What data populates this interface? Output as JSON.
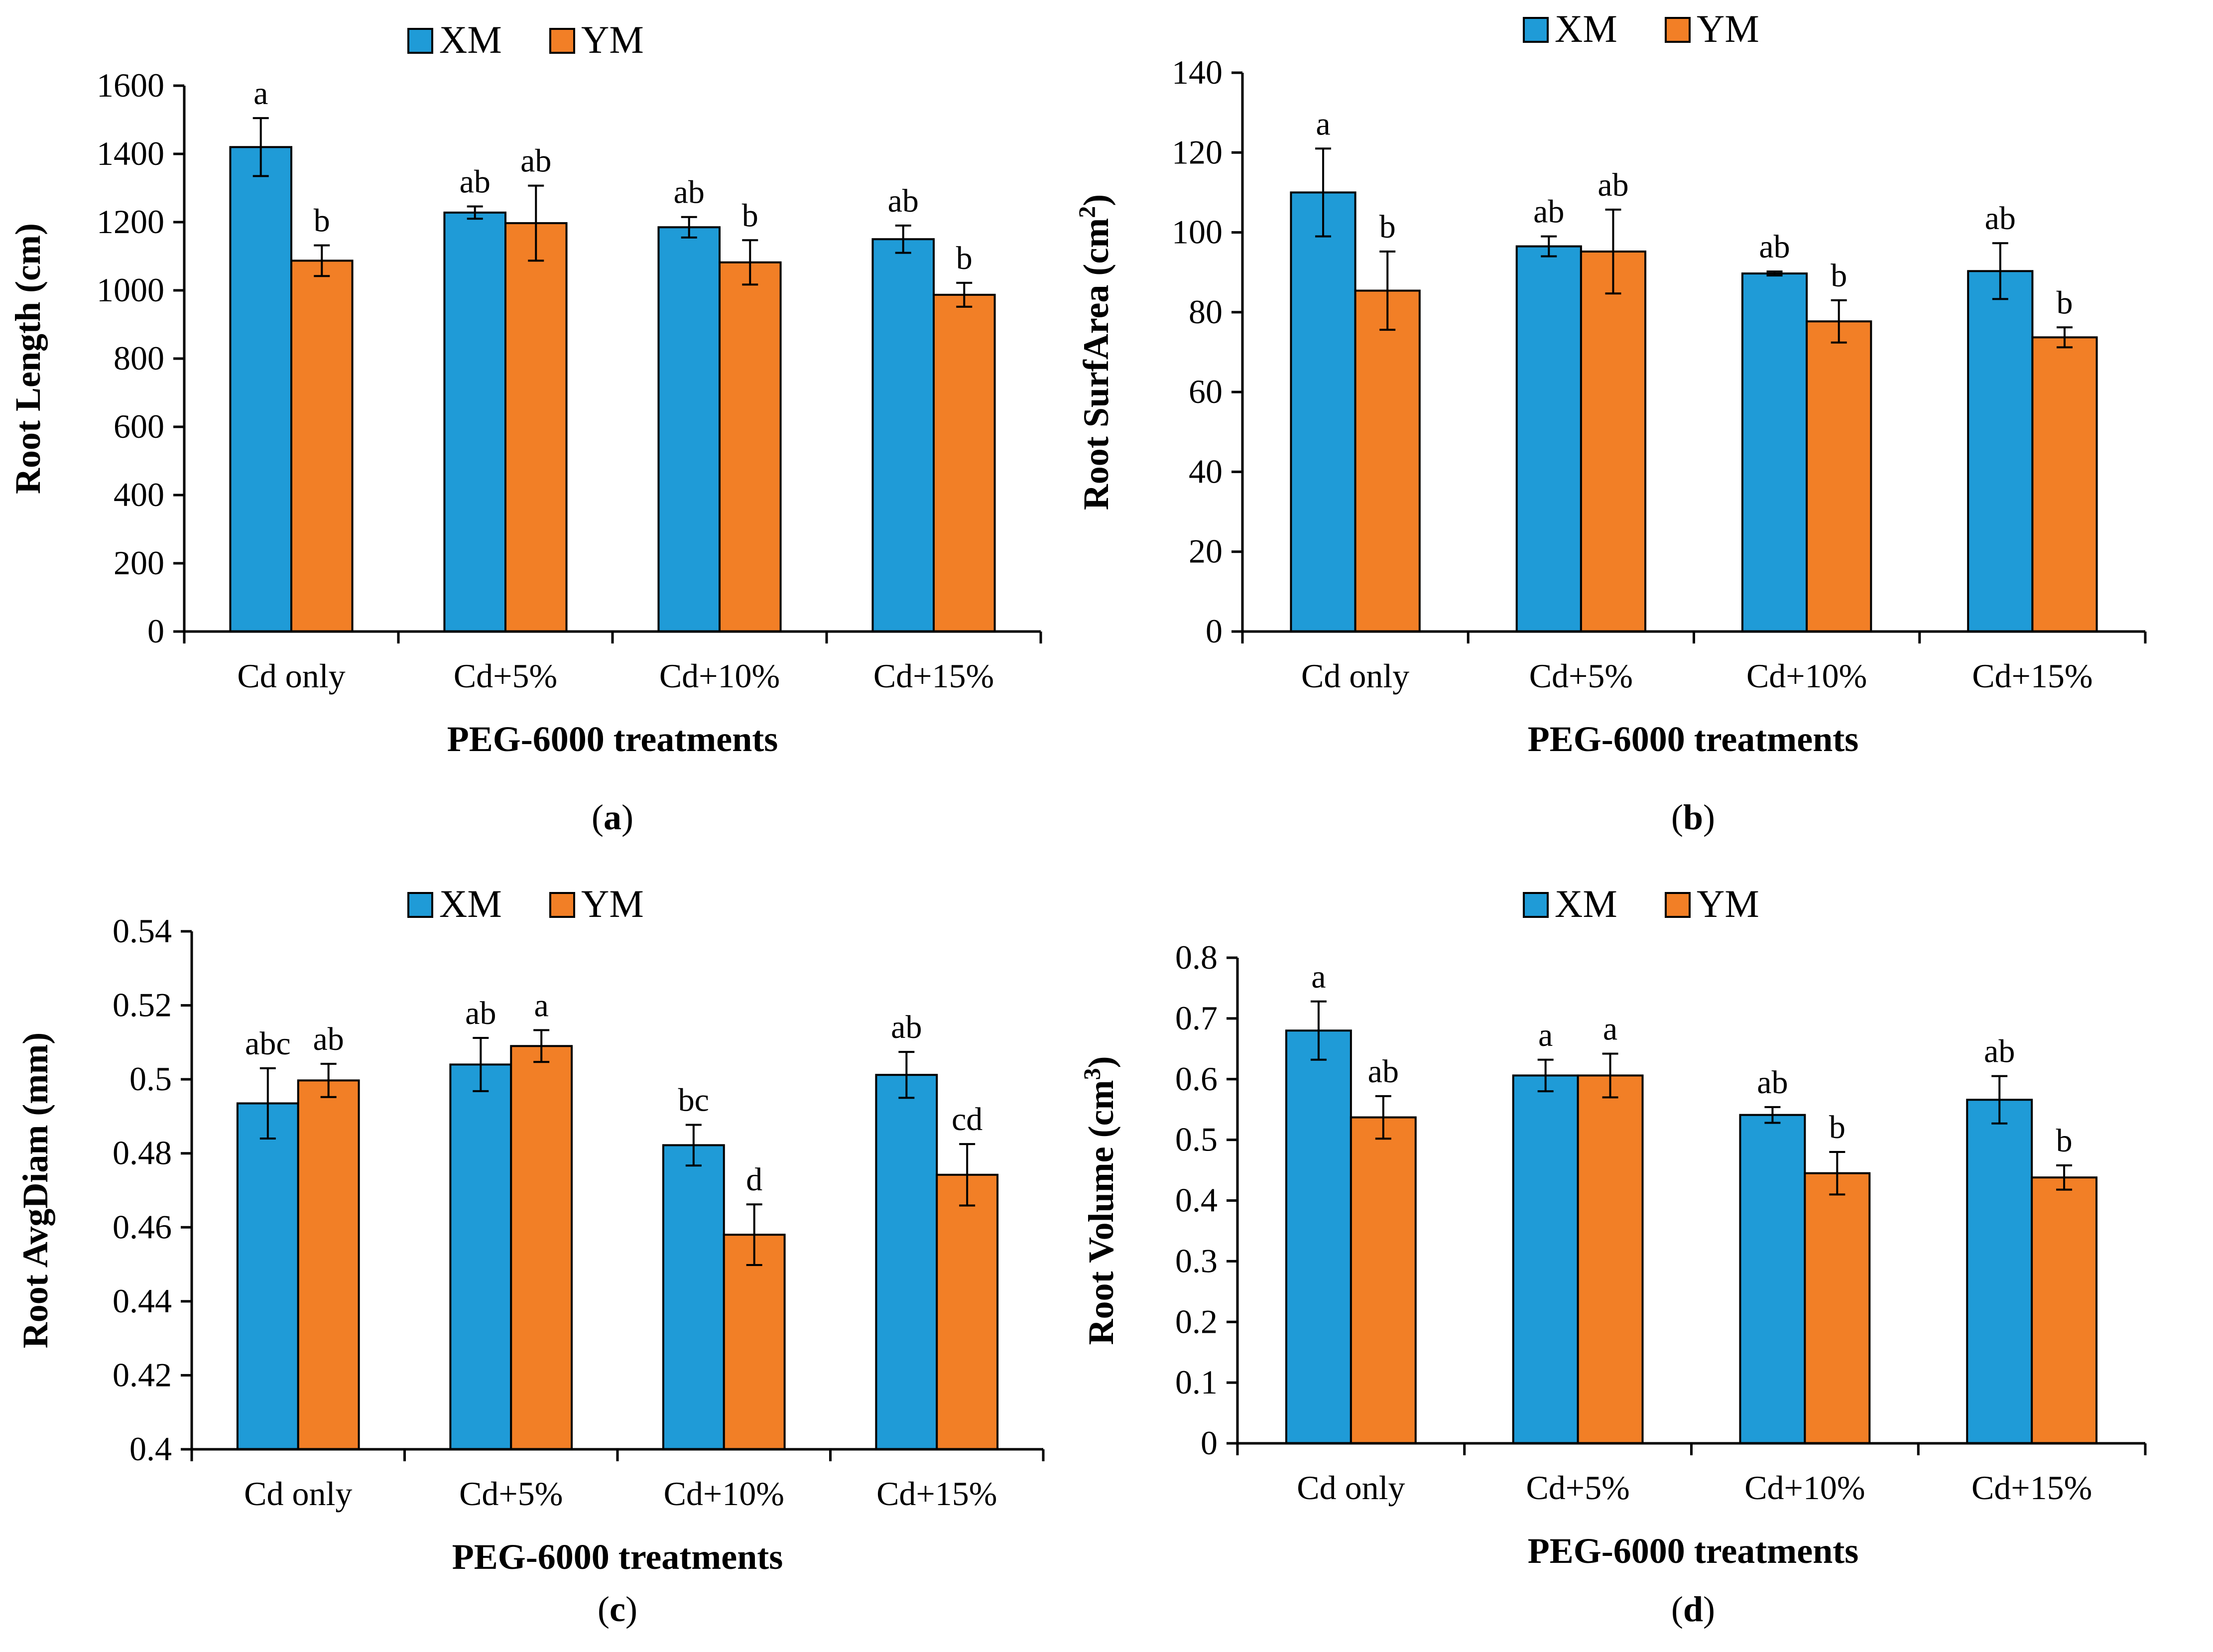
{
  "colors": {
    "XM": "#1f9bd7",
    "YM": "#f27f26",
    "axis": "#000000"
  },
  "legend": [
    "XM",
    "YM"
  ],
  "chart_data": [
    {
      "type": "bar",
      "panel_label": "a",
      "categories": [
        "Cd only",
        "Cd+5%",
        "Cd+10%",
        "Cd+15%"
      ],
      "series": [
        {
          "name": "XM",
          "values": [
            1420,
            1228,
            1185,
            1150
          ],
          "errors": [
            85,
            18,
            30,
            40
          ],
          "labels": [
            "a",
            "ab",
            "ab",
            "ab"
          ]
        },
        {
          "name": "YM",
          "values": [
            1087,
            1197,
            1082,
            987
          ],
          "errors": [
            45,
            110,
            65,
            35
          ],
          "labels": [
            "b",
            "ab",
            "b",
            "b"
          ]
        }
      ],
      "ylabel": "Root Length (cm)",
      "ylabel_sup": "",
      "ylabel_tail": "",
      "xlabel": "PEG-6000 treatments",
      "ylim": [
        0,
        1600
      ],
      "yticks": [
        0,
        200,
        400,
        600,
        800,
        1000,
        1200,
        1400,
        1600
      ],
      "tick_labels": [
        "0",
        "200",
        "400",
        "600",
        "800",
        "1000",
        "1200",
        "1400",
        "1600"
      ]
    },
    {
      "type": "bar",
      "panel_label": "b",
      "categories": [
        "Cd only",
        "Cd+5%",
        "Cd+10%",
        "Cd+15%"
      ],
      "series": [
        {
          "name": "XM",
          "values": [
            110,
            96.5,
            89.7,
            90.3
          ],
          "errors": [
            11,
            2.5,
            0.5,
            7
          ],
          "labels": [
            "a",
            "ab",
            "ab",
            "ab"
          ]
        },
        {
          "name": "YM",
          "values": [
            85.4,
            95.2,
            77.7,
            73.7
          ],
          "errors": [
            9.8,
            10.5,
            5.3,
            2.5
          ],
          "labels": [
            "b",
            "ab",
            "b",
            "b"
          ]
        }
      ],
      "ylabel": "Root SurfArea (cm",
      "ylabel_sup": "2",
      "ylabel_tail": ")",
      "xlabel": "PEG-6000 treatments",
      "ylim": [
        0,
        140
      ],
      "yticks": [
        0,
        20,
        40,
        60,
        80,
        100,
        120,
        140
      ],
      "tick_labels": [
        "0",
        "20",
        "40",
        "60",
        "80",
        "100",
        "120",
        "140"
      ]
    },
    {
      "type": "bar",
      "panel_label": "c",
      "categories": [
        "Cd only",
        "Cd+5%",
        "Cd+10%",
        "Cd+15%"
      ],
      "series": [
        {
          "name": "XM",
          "values": [
            0.4935,
            0.504,
            0.4822,
            0.5012
          ],
          "errors": [
            0.0095,
            0.0072,
            0.0055,
            0.0062
          ],
          "labels": [
            "abc",
            "ab",
            "bc",
            "ab"
          ]
        },
        {
          "name": "YM",
          "values": [
            0.4997,
            0.509,
            0.458,
            0.4742
          ],
          "errors": [
            0.0045,
            0.0043,
            0.0082,
            0.0083
          ],
          "labels": [
            "ab",
            "a",
            "d",
            "cd"
          ]
        }
      ],
      "ylabel": "Root AvgDiam (mm)",
      "ylabel_sup": "",
      "ylabel_tail": "",
      "xlabel": "PEG-6000 treatments",
      "ylim": [
        0.4,
        0.54
      ],
      "yticks": [
        0.4,
        0.42,
        0.44,
        0.46,
        0.48,
        0.5,
        0.52,
        0.54
      ],
      "tick_labels": [
        "0.4",
        "0.42",
        "0.44",
        "0.46",
        "0.48",
        "0.5",
        "0.52",
        "0.54"
      ]
    },
    {
      "type": "bar",
      "panel_label": "d",
      "categories": [
        "Cd only",
        "Cd+5%",
        "Cd+10%",
        "Cd+15%"
      ],
      "series": [
        {
          "name": "XM",
          "values": [
            0.68,
            0.606,
            0.541,
            0.566
          ],
          "errors": [
            0.048,
            0.026,
            0.013,
            0.039
          ],
          "labels": [
            "a",
            "a",
            "ab",
            "ab"
          ]
        },
        {
          "name": "YM",
          "values": [
            0.537,
            0.606,
            0.445,
            0.438
          ],
          "errors": [
            0.035,
            0.036,
            0.035,
            0.02
          ],
          "labels": [
            "ab",
            "a",
            "b",
            "b"
          ]
        }
      ],
      "ylabel": "Root Volume (cm",
      "ylabel_sup": "3",
      "ylabel_tail": ")",
      "xlabel": "PEG-6000 treatments",
      "ylim": [
        0,
        0.8
      ],
      "yticks": [
        0,
        0.1,
        0.2,
        0.3,
        0.4,
        0.5,
        0.6,
        0.7,
        0.8
      ],
      "tick_labels": [
        "0",
        "0.1",
        "0.2",
        "0.3",
        "0.4",
        "0.5",
        "0.6",
        "0.7",
        "0.8"
      ]
    }
  ]
}
